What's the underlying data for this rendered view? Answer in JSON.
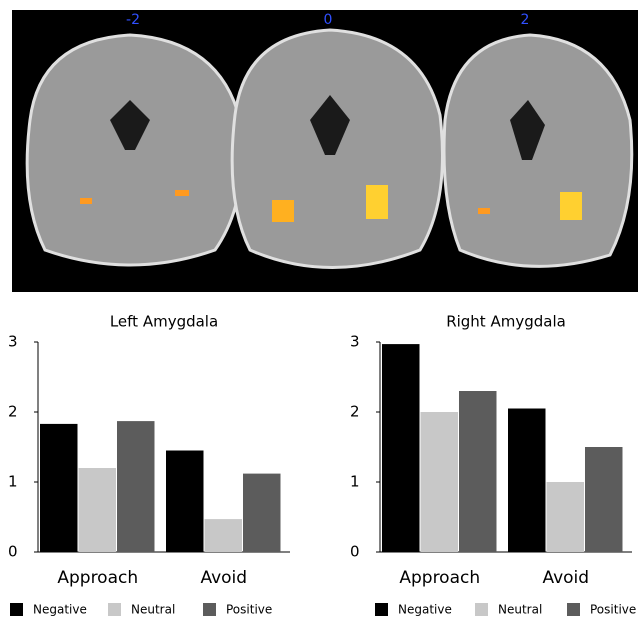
{
  "brain_panel": {
    "slice_labels": [
      "-2",
      "0",
      "2"
    ]
  },
  "chart_data": [
    {
      "type": "bar",
      "title": "Left Amygdala",
      "categories": [
        "Approach",
        "Avoid"
      ],
      "series": [
        {
          "name": "Negative",
          "color": "#000000",
          "values": [
            1.83,
            1.45
          ]
        },
        {
          "name": "Neutral",
          "color": "#c8c8c8",
          "values": [
            1.2,
            0.47
          ]
        },
        {
          "name": "Positive",
          "color": "#5c5c5c",
          "values": [
            1.87,
            1.12
          ]
        }
      ],
      "ylim": [
        0,
        3
      ],
      "yticks": [
        0,
        1,
        2,
        3
      ]
    },
    {
      "type": "bar",
      "title": "Right Amygdala",
      "categories": [
        "Approach",
        "Avoid"
      ],
      "series": [
        {
          "name": "Negative",
          "color": "#000000",
          "values": [
            2.97,
            2.05
          ]
        },
        {
          "name": "Neutral",
          "color": "#c8c8c8",
          "values": [
            2.0,
            1.0
          ]
        },
        {
          "name": "Positive",
          "color": "#5c5c5c",
          "values": [
            2.3,
            1.5
          ]
        }
      ],
      "ylim": [
        0,
        3
      ],
      "yticks": [
        0,
        1,
        2,
        3
      ]
    }
  ]
}
